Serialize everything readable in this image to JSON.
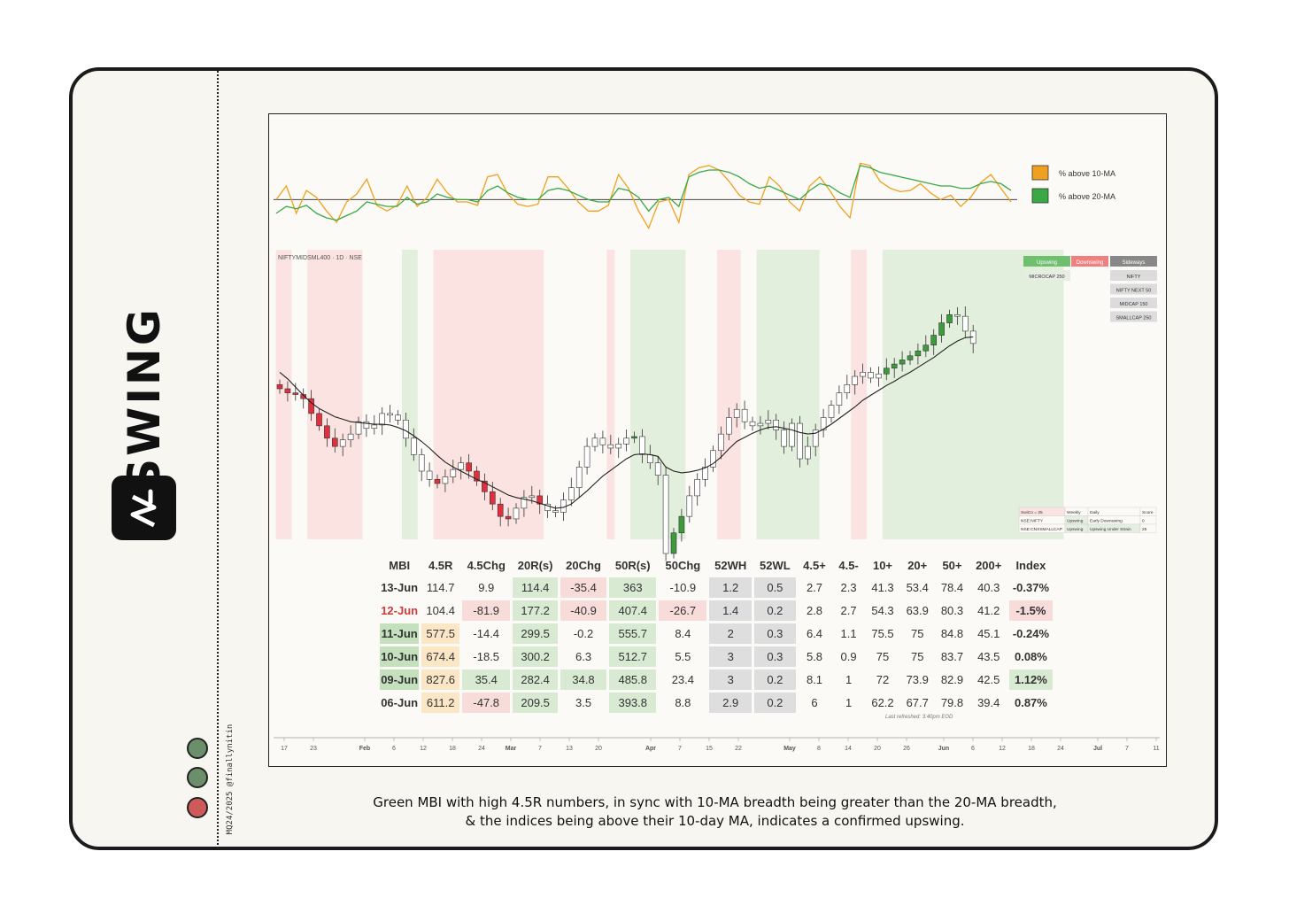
{
  "brand": {
    "name": "SWING",
    "credit": "MQ24/2025 @finallynitin"
  },
  "colors": {
    "up": "#3d9b3d",
    "down": "#e0303f",
    "green_fill": "#e3efdd",
    "red_fill": "#fae3e0",
    "orange_line": "#f0a020",
    "green_line": "#3aa944",
    "dot_green": "#6b8e6b",
    "dot_red": "#d05a5a"
  },
  "breadth_legend": [
    {
      "label": "% above 10-MA",
      "color": "#f0a020"
    },
    {
      "label": "% above 20-MA",
      "color": "#3aa944"
    }
  ],
  "symbol_label": "NIFTYMIDSML400 · 1D · NSE",
  "status_panel": {
    "headers": [
      {
        "label": "Upswing",
        "color": "#6fbf6f"
      },
      {
        "label": "Downswing",
        "color": "#f08080"
      },
      {
        "label": "Sideways",
        "color": "#888888"
      }
    ],
    "upswing": [
      "MICROCAP 250"
    ],
    "downswing": [],
    "sideways": [
      "NIFTY",
      "NIFTY NEXT 50",
      "MIDCAP 150",
      "SMALLCAP 250"
    ]
  },
  "mini_table": {
    "rows": [
      [
        "SwiCo = 25",
        "Weekly",
        "Daily",
        "Score"
      ],
      [
        "NSE:NIFTY",
        "Upswing",
        "Early Downswing",
        "0"
      ],
      [
        "NSE:CNXSMALLCAP",
        "Upswing",
        "Upswing Under Strain",
        "25"
      ]
    ]
  },
  "chart_data": [
    {
      "type": "line",
      "title": "",
      "series": [
        {
          "name": "% above 10-MA",
          "values": [
            50,
            62,
            38,
            58,
            52,
            40,
            30,
            48,
            55,
            68,
            45,
            40,
            45,
            62,
            44,
            52,
            68,
            56,
            48,
            48,
            45,
            70,
            72,
            55,
            46,
            44,
            46,
            70,
            70,
            60,
            48,
            40,
            40,
            45,
            72,
            60,
            40,
            25,
            48,
            50,
            30,
            72,
            78,
            80,
            76,
            66,
            54,
            48,
            46,
            70,
            62,
            48,
            40,
            62,
            70,
            58,
            44,
            34,
            82,
            80,
            66,
            60,
            57,
            58,
            64,
            56,
            50,
            54,
            44,
            52,
            65,
            72,
            60,
            48
          ]
        },
        {
          "name": "% above 20-MA",
          "values": [
            38,
            44,
            42,
            45,
            38,
            34,
            32,
            36,
            40,
            48,
            46,
            44,
            44,
            52,
            46,
            48,
            55,
            52,
            50,
            50,
            48,
            58,
            62,
            56,
            52,
            50,
            50,
            58,
            60,
            58,
            54,
            50,
            48,
            48,
            60,
            58,
            52,
            40,
            50,
            52,
            44,
            70,
            74,
            76,
            76,
            74,
            70,
            64,
            60,
            62,
            58,
            54,
            50,
            58,
            64,
            62,
            56,
            52,
            80,
            78,
            74,
            72,
            70,
            68,
            66,
            64,
            62,
            62,
            60,
            60,
            64,
            66,
            64,
            58
          ]
        }
      ],
      "ref_value": 50
    },
    {
      "type": "candlestick",
      "symbol": "NIFTYMIDSML400",
      "x_tick_labels": [
        "17",
        "23",
        "Feb",
        "6",
        "12",
        "18",
        "24",
        "Mar",
        "7",
        "13",
        "20",
        "Apr",
        "7",
        "15",
        "22",
        "May",
        "8",
        "14",
        "20",
        "26",
        "Jun",
        "6",
        "12",
        "18",
        "24",
        "Jul",
        "7",
        "11"
      ],
      "close": [
        100.0,
        99.5,
        99.3,
        98.8,
        97.0,
        95.5,
        94.0,
        93.0,
        93.8,
        94.5,
        96.0,
        95.2,
        95.6,
        97.0,
        96.8,
        96.2,
        94.0,
        92.0,
        90.0,
        89.0,
        88.5,
        89.3,
        90.2,
        91.0,
        90.0,
        88.8,
        87.5,
        86.0,
        84.5,
        84.2,
        85.5,
        86.8,
        87.0,
        86.0,
        85.2,
        85.0,
        86.5,
        88.0,
        90.5,
        93.0,
        94.0,
        93.2,
        92.8,
        93.3,
        94.0,
        94.2,
        92.0,
        91.0,
        89.5,
        80.0,
        82.5,
        84.5,
        87.0,
        89.0,
        90.5,
        92.5,
        94.5,
        96.5,
        97.5,
        96.0,
        95.5,
        95.8,
        96.2,
        95.0,
        93.0,
        95.8,
        91.5,
        93.0,
        95.0,
        96.5,
        98.0,
        99.5,
        100.5,
        101.5,
        102.0,
        101.3,
        101.8,
        102.5,
        103.0,
        103.5,
        104.0,
        104.6,
        105.3,
        106.5,
        108.0,
        109.0,
        108.8,
        107.0,
        105.5
      ],
      "ma10": [
        102.0,
        101.2,
        100.2,
        99.2,
        98.3,
        97.6,
        97.1,
        96.6,
        96.3,
        96.0,
        95.9,
        95.8,
        95.7,
        95.7,
        95.6,
        95.3,
        94.9,
        94.3,
        93.6,
        92.8,
        91.9,
        91.1,
        90.5,
        90.0,
        89.5,
        89.0,
        88.6,
        88.1,
        87.6,
        87.1,
        86.8,
        86.6,
        86.4,
        86.1,
        85.8,
        85.5,
        85.6,
        86.0,
        86.8,
        87.6,
        88.5,
        89.4,
        90.1,
        90.8,
        91.5,
        92.0,
        92.1,
        92.0,
        91.8,
        90.5,
        90.0,
        89.8,
        89.9,
        90.1,
        90.4,
        90.9,
        91.7,
        92.7,
        93.6,
        94.1,
        94.6,
        95.0,
        95.3,
        95.4,
        95.2,
        95.0,
        94.7,
        94.5,
        94.6,
        95.1,
        95.7,
        96.4,
        97.1,
        97.8,
        98.6,
        99.2,
        99.8,
        100.4,
        100.9,
        101.5,
        102.0,
        102.6,
        103.2,
        103.8,
        104.5,
        105.2,
        105.8,
        106.2,
        106.3
      ],
      "bg_zones": [
        {
          "state": "down",
          "from": 0,
          "to": 1
        },
        {
          "state": "down",
          "from": 4,
          "to": 10
        },
        {
          "state": "up",
          "from": 16,
          "to": 17
        },
        {
          "state": "down",
          "from": 20,
          "to": 33
        },
        {
          "state": "down",
          "from": 42,
          "to": 42
        },
        {
          "state": "up",
          "from": 45,
          "to": 51
        },
        {
          "state": "down",
          "from": 56,
          "to": 58
        },
        {
          "state": "up",
          "from": 61,
          "to": 68
        },
        {
          "state": "down",
          "from": 73,
          "to": 74
        },
        {
          "state": "up",
          "from": 77,
          "to": 99
        }
      ]
    },
    {
      "type": "table",
      "title": "MBI",
      "columns": [
        "MBI",
        "4.5R",
        "4.5Chg",
        "20R(s)",
        "20Chg",
        "50R(s)",
        "50Chg",
        "52WH",
        "52WL",
        "4.5+",
        "4.5-",
        "10+",
        "20+",
        "50+",
        "200+",
        "Index"
      ],
      "rows": [
        [
          "13-Jun",
          "114.7",
          "9.9",
          "114.4",
          "-35.4",
          "363",
          "-10.9",
          "1.2",
          "0.5",
          "2.7",
          "2.3",
          "41.3",
          "53.4",
          "78.4",
          "40.3",
          "-0.37%"
        ],
        [
          "12-Jun",
          "104.4",
          "-81.9",
          "177.2",
          "-40.9",
          "407.4",
          "-26.7",
          "1.4",
          "0.2",
          "2.8",
          "2.7",
          "54.3",
          "63.9",
          "80.3",
          "41.2",
          "-1.5%"
        ],
        [
          "11-Jun",
          "577.5",
          "-14.4",
          "299.5",
          "-0.2",
          "555.7",
          "8.4",
          "2",
          "0.3",
          "6.4",
          "1.1",
          "75.5",
          "75",
          "84.8",
          "45.1",
          "-0.24%"
        ],
        [
          "10-Jun",
          "674.4",
          "-18.5",
          "300.2",
          "6.3",
          "512.7",
          "5.5",
          "3",
          "0.3",
          "5.8",
          "0.9",
          "75",
          "75",
          "83.7",
          "43.5",
          "0.08%"
        ],
        [
          "09-Jun",
          "827.6",
          "35.4",
          "282.4",
          "34.8",
          "485.8",
          "23.4",
          "3",
          "0.2",
          "8.1",
          "1",
          "72",
          "73.9",
          "82.9",
          "42.5",
          "1.12%"
        ],
        [
          "06-Jun",
          "611.2",
          "-47.8",
          "209.5",
          "3.5",
          "393.8",
          "8.8",
          "2.9",
          "0.2",
          "6",
          "1",
          "62.2",
          "67.7",
          "79.8",
          "39.4",
          "0.87%"
        ]
      ],
      "cell_colors": [
        [
          "",
          "",
          "",
          "g",
          "r",
          "g",
          "",
          "n",
          "n",
          "",
          "",
          "",
          "",
          "",
          "",
          ""
        ],
        [
          "",
          "",
          "r",
          "g",
          "r",
          "g",
          "r",
          "n",
          "n",
          "",
          "",
          "",
          "",
          "",
          "",
          "r"
        ],
        [
          "g",
          "o",
          "",
          "g",
          "",
          "g",
          "",
          "n",
          "n",
          "",
          "",
          "",
          "",
          "",
          "",
          ""
        ],
        [
          "g",
          "o",
          "",
          "g",
          "",
          "g",
          "",
          "n",
          "n",
          "",
          "",
          "",
          "",
          "",
          "",
          ""
        ],
        [
          "g",
          "o",
          "g",
          "g",
          "g",
          "g",
          "",
          "n",
          "n",
          "",
          "",
          "",
          "",
          "",
          "",
          "g"
        ],
        [
          "",
          "o",
          "r",
          "g",
          "",
          "g",
          "",
          "n",
          "n",
          "",
          "",
          "",
          "",
          "",
          "",
          ""
        ]
      ],
      "refreshed": "Last refreshed: 3:40pm EOD"
    }
  ],
  "caption": {
    "line1": "Green MBI with high 4.5R numbers, in sync with 10-MA breadth being greater than the 20-MA breadth,",
    "line2": "& the indices being above their 10-day MA, indicates a confirmed upswing."
  },
  "traffic_dots": [
    "#6b8e6b",
    "#6b8e6b",
    "#d05a5a"
  ]
}
